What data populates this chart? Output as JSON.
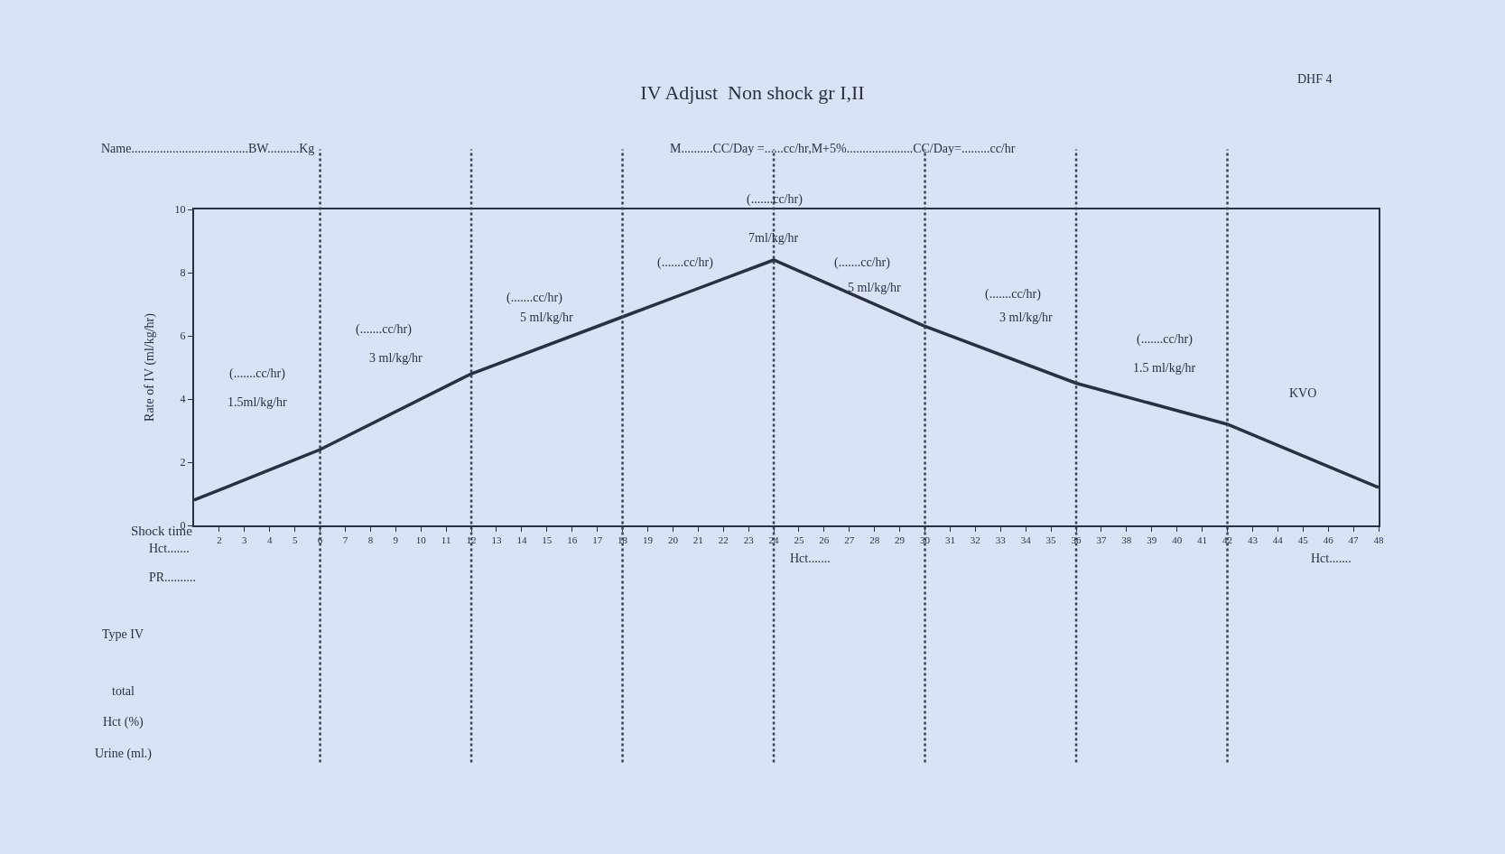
{
  "chart_data": {
    "type": "line",
    "title": "IV Adjust  Non shock gr I,II",
    "ylabel": "Rate of IV (ml/kg/hr)",
    "xlabel": "Shock time",
    "x": [
      1,
      6,
      12,
      18,
      24,
      30,
      36,
      42,
      48
    ],
    "series": [
      {
        "color": "#2b3040",
        "values": [
          0.8,
          2.4,
          4.8,
          6.6,
          8.4,
          6.3,
          4.5,
          3.2,
          1.2
        ]
      }
    ],
    "xlim": [
      1,
      48
    ],
    "xticks": [
      2,
      3,
      4,
      5,
      6,
      7,
      8,
      9,
      10,
      11,
      12,
      13,
      14,
      15,
      16,
      17,
      18,
      19,
      20,
      21,
      22,
      23,
      24,
      25,
      26,
      27,
      28,
      29,
      30,
      31,
      32,
      33,
      34,
      35,
      36,
      37,
      38,
      39,
      40,
      41,
      42,
      43,
      44,
      45,
      46,
      47,
      48
    ],
    "ylim": [
      0,
      10
    ],
    "yticks": [
      0,
      2,
      4,
      6,
      8,
      10
    ],
    "grid": false,
    "marker": "none",
    "line_style": "solid",
    "ref_lines": [
      {
        "axis": "x",
        "value": 6,
        "line_style": "dotted",
        "color": "#3a4050"
      },
      {
        "axis": "x",
        "value": 12,
        "line_style": "dotted",
        "color": "#3a4050"
      },
      {
        "axis": "x",
        "value": 18,
        "line_style": "dotted",
        "color": "#3a4050"
      },
      {
        "axis": "x",
        "value": 24,
        "line_style": "dotted",
        "color": "#3a4050"
      },
      {
        "axis": "x",
        "value": 30,
        "line_style": "dotted",
        "color": "#3a4050"
      },
      {
        "axis": "x",
        "value": 36,
        "line_style": "dotted",
        "color": "#3a4050"
      },
      {
        "axis": "x",
        "value": 42,
        "line_style": "dotted",
        "color": "#3a4050"
      }
    ],
    "annotations": [
      "Name.....................................BW..........Kg",
      "M..........CC/Day =......cc/hr,M+5%.....................CC/Day=.........cc/hr",
      "DHF 4",
      "(.......cc/hr)",
      "Hct.......",
      "PR..........",
      "Hct.......",
      "Hct.......",
      "Type IV",
      "total",
      "Hct (%)",
      "Urine (ml.)",
      "(.......cc/hr)",
      "1.5ml/kg/hr",
      "(.......cc/hr)",
      "3 ml/kg/hr",
      "(.......cc/hr)",
      "5 ml/kg/hr",
      "(.......cc/hr)",
      {
        "text": "7ml/kg/hr",
        "x": 24,
        "y": 9.1
      },
      "(.......cc/hr)",
      "5 ml/kg/hr",
      "(.......cc/hr)",
      "3 ml/kg/hr",
      "(.......cc/hr)",
      "1.5 ml/kg/hr",
      "KVO"
    ]
  }
}
